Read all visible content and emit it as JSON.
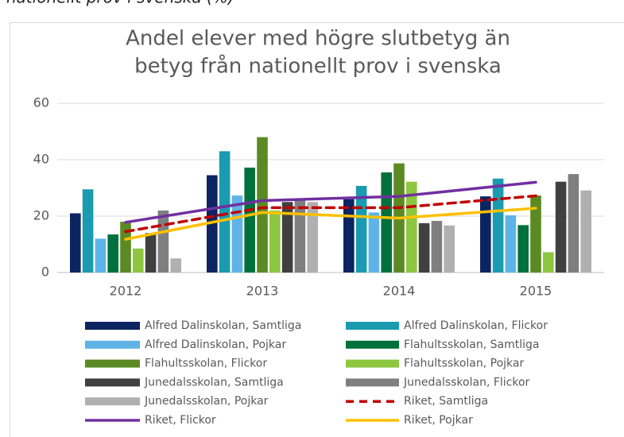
{
  "page_heading": "nationellt prov i svenska (%)",
  "chart_data": {
    "type": "bar",
    "title": [
      "Andel elever med högre slutbetyg än",
      "betyg från nationellt prov i svenska"
    ],
    "categories": [
      "2012",
      "2013",
      "2014",
      "2015"
    ],
    "ylim": [
      0,
      60
    ],
    "yticks": [
      0,
      20,
      40,
      60
    ],
    "grid": true,
    "series": [
      {
        "name": "Alfred Dalinskolan, Samtliga",
        "color": "#0c2461",
        "values": [
          21,
          34.5,
          26,
          27
        ]
      },
      {
        "name": "Alfred Dalinskolan, Flickor",
        "color": "#1a9bb0",
        "values": [
          29.5,
          43,
          30.7,
          33.3
        ]
      },
      {
        "name": "Alfred Dalinskolan, Pojkar",
        "color": "#5fb3e6",
        "values": [
          12,
          27.3,
          21.3,
          20.3
        ]
      },
      {
        "name": "Flahultsskolan, Samtliga",
        "color": "#00703c",
        "values": [
          13.5,
          37.2,
          35.5,
          16.8
        ]
      },
      {
        "name": "Flahultsskolan, Flickor",
        "color": "#5b8a23",
        "values": [
          18,
          48,
          38.7,
          27.3
        ]
      },
      {
        "name": "Flahultsskolan, Pojkar",
        "color": "#8dc63f",
        "values": [
          8.5,
          22,
          32.2,
          7.2
        ]
      },
      {
        "name": "Junedalsskolan, Samtliga",
        "color": "#404040",
        "values": [
          14,
          25,
          17.5,
          32.2
        ]
      },
      {
        "name": "Junedalsskolan, Flickor",
        "color": "#7f7f7f",
        "values": [
          22,
          26,
          18.3,
          34.9
        ]
      },
      {
        "name": "Junedalsskolan, Pojkar",
        "color": "#b0b0b0",
        "values": [
          5,
          25,
          16.7,
          29.1
        ]
      },
      {
        "name": "Riket, Samtliga",
        "color": "#c00000",
        "type": "line",
        "dashed": true,
        "values": [
          14.5,
          23,
          23,
          27.2
        ]
      },
      {
        "name": "Riket, Flickor",
        "color": "#7030a0",
        "type": "line",
        "values": [
          17.8,
          25.5,
          27,
          32
        ]
      },
      {
        "name": "Riket, Pojkar",
        "color": "#ffc000",
        "type": "line",
        "values": [
          11.8,
          21.3,
          19.3,
          22.8
        ]
      }
    ]
  }
}
